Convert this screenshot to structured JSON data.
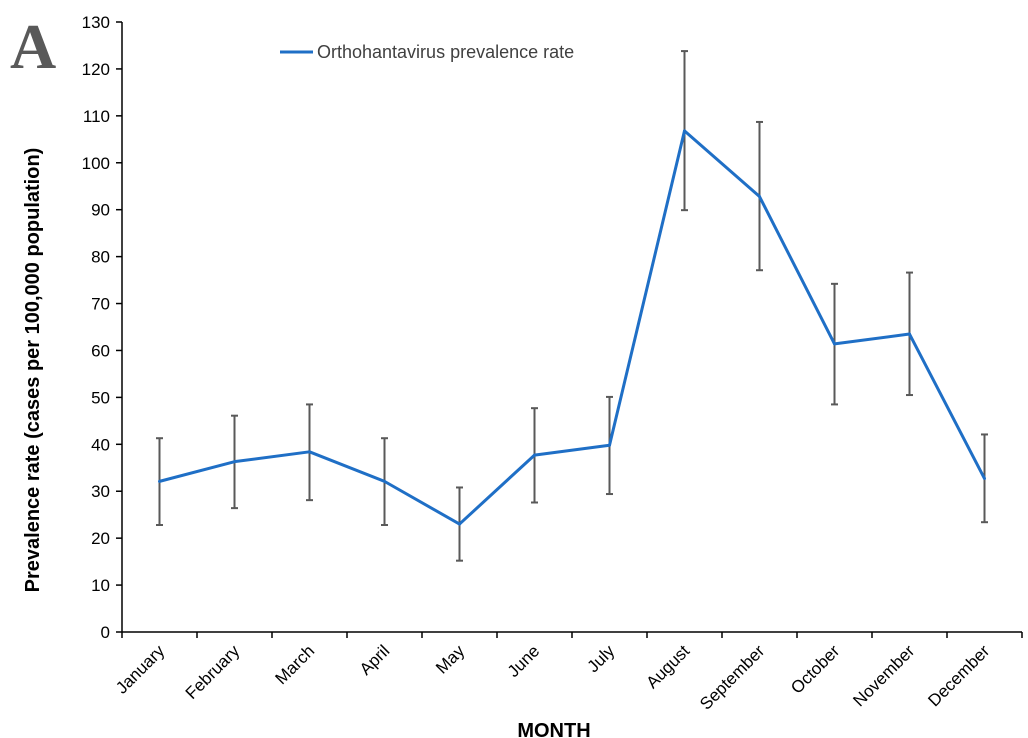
{
  "panel_label": "A",
  "chart_data": {
    "type": "line",
    "title": "",
    "xlabel": "MONTH",
    "ylabel": "Prevalence rate (cases per 100,000 population)",
    "ylim": [
      0,
      130
    ],
    "y_ticks": [
      0,
      10,
      20,
      30,
      40,
      50,
      60,
      70,
      80,
      90,
      100,
      110,
      120,
      130
    ],
    "grid": false,
    "legend_position": "top",
    "categories": [
      "January",
      "February",
      "March",
      "April",
      "May",
      "June",
      "July",
      "August",
      "September",
      "October",
      "November",
      "December"
    ],
    "series": [
      {
        "name": "Orthohantavirus prevalence rate",
        "color": "#1f6fc6",
        "values": [
          32.1,
          36.3,
          38.4,
          32.1,
          23.0,
          37.7,
          39.8,
          106.8,
          92.8,
          61.4,
          63.5,
          32.7
        ],
        "error_low": [
          22.8,
          26.4,
          28.1,
          22.8,
          15.2,
          27.6,
          29.4,
          89.9,
          77.1,
          48.5,
          50.5,
          23.4
        ],
        "error_high": [
          41.3,
          46.1,
          48.5,
          41.3,
          30.8,
          47.7,
          50.1,
          123.8,
          108.7,
          74.2,
          76.6,
          42.1
        ]
      }
    ],
    "error_bar_color": "#595959"
  }
}
